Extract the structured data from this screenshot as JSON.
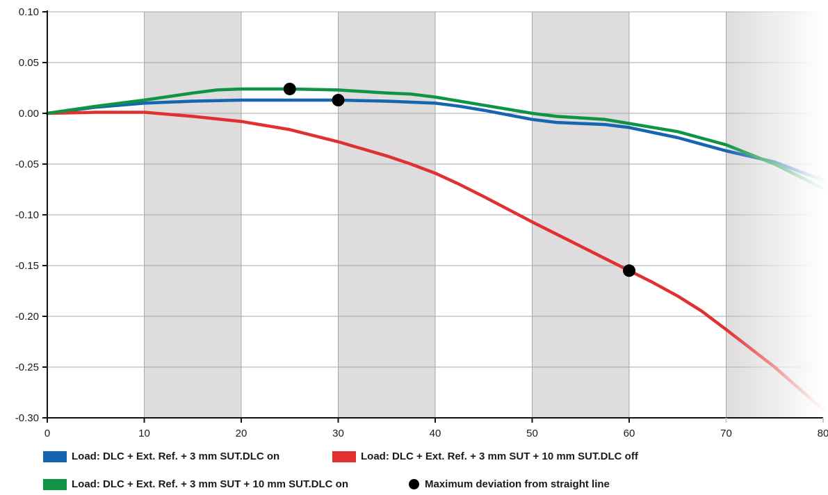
{
  "chart_data": {
    "type": "line",
    "title": "",
    "xlabel": "",
    "ylabel": "",
    "xlim": [
      0,
      80
    ],
    "ylim": [
      -0.3,
      0.1
    ],
    "x_ticks": [
      "0",
      "10",
      "20",
      "30",
      "40",
      "50",
      "60",
      "70",
      "80"
    ],
    "y_ticks": [
      "0.10",
      "0.05",
      "0.00",
      "-0.05",
      "-0.10",
      "-0.15",
      "-0.20",
      "-0.25",
      "-0.30"
    ],
    "shaded_bands": [
      [
        10,
        20
      ],
      [
        30,
        40
      ],
      [
        50,
        60
      ],
      [
        70,
        80
      ]
    ],
    "grid": true,
    "legend_position": "bottom",
    "series": [
      {
        "name": "Load: DLC + Ext. Ref. + 3 mm SUT.DLC on",
        "color": "#1565b0",
        "x": [
          0,
          5,
          10,
          15,
          20,
          25,
          30,
          35,
          40,
          42.5,
          45,
          50,
          52.5,
          57.5,
          60,
          65,
          70,
          75,
          80
        ],
        "y": [
          0.0,
          0.006,
          0.01,
          0.012,
          0.013,
          0.013,
          0.013,
          0.012,
          0.01,
          0.007,
          0.003,
          -0.006,
          -0.009,
          -0.011,
          -0.014,
          -0.024,
          -0.037,
          -0.048,
          -0.066
        ]
      },
      {
        "name": "Load: DLC + Ext. Ref. + 3 mm SUT + 10 mm SUT.DLC off",
        "color": "#e03030",
        "x": [
          0,
          5,
          10,
          15,
          20,
          25,
          30,
          35,
          37.5,
          40,
          42.5,
          45,
          50,
          55,
          60,
          62.5,
          65,
          67.5,
          70,
          75,
          80
        ],
        "y": [
          0.0,
          0.001,
          0.001,
          -0.003,
          -0.008,
          -0.016,
          -0.028,
          -0.042,
          -0.05,
          -0.059,
          -0.07,
          -0.082,
          -0.107,
          -0.131,
          -0.155,
          -0.167,
          -0.18,
          -0.195,
          -0.213,
          -0.25,
          -0.292
        ]
      },
      {
        "name": "Load: DLC + Ext. Ref. + 3 mm SUT + 10 mm SUT.DLC on",
        "color": "#0e9444",
        "x": [
          0,
          5,
          10,
          15,
          17.5,
          20,
          25,
          30,
          35,
          37.5,
          40,
          42.5,
          45,
          50,
          52.5,
          57.5,
          60,
          65,
          70,
          75,
          80
        ],
        "y": [
          0.0,
          0.007,
          0.013,
          0.02,
          0.023,
          0.024,
          0.024,
          0.023,
          0.02,
          0.019,
          0.016,
          0.012,
          0.008,
          0.0,
          -0.003,
          -0.006,
          -0.01,
          -0.018,
          -0.031,
          -0.05,
          -0.074
        ]
      }
    ],
    "markers": {
      "name": "Maximum deviation from straight line",
      "color": "#000000",
      "points": [
        {
          "x": 25,
          "y": 0.024
        },
        {
          "x": 30,
          "y": 0.013
        },
        {
          "x": 60,
          "y": -0.155
        }
      ]
    }
  }
}
